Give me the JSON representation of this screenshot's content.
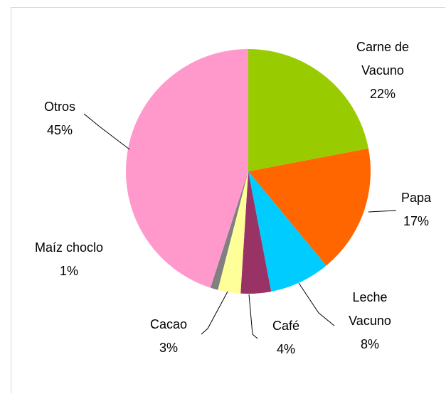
{
  "chart_data": {
    "type": "pie",
    "categories": [
      "Carne de Vacuno",
      "Papa",
      "Leche Vacuno",
      "Café",
      "Cacao",
      "Maíz choclo",
      "Otros"
    ],
    "values": [
      22,
      17,
      8,
      4,
      3,
      1,
      45
    ],
    "value_labels": [
      "22%",
      "17%",
      "8%",
      "4%",
      "3%",
      "1%",
      "45%"
    ],
    "colors": [
      "#99cc00",
      "#ff6600",
      "#00ccff",
      "#993366",
      "#ffff99",
      "#808080",
      "#ff99cc"
    ]
  }
}
